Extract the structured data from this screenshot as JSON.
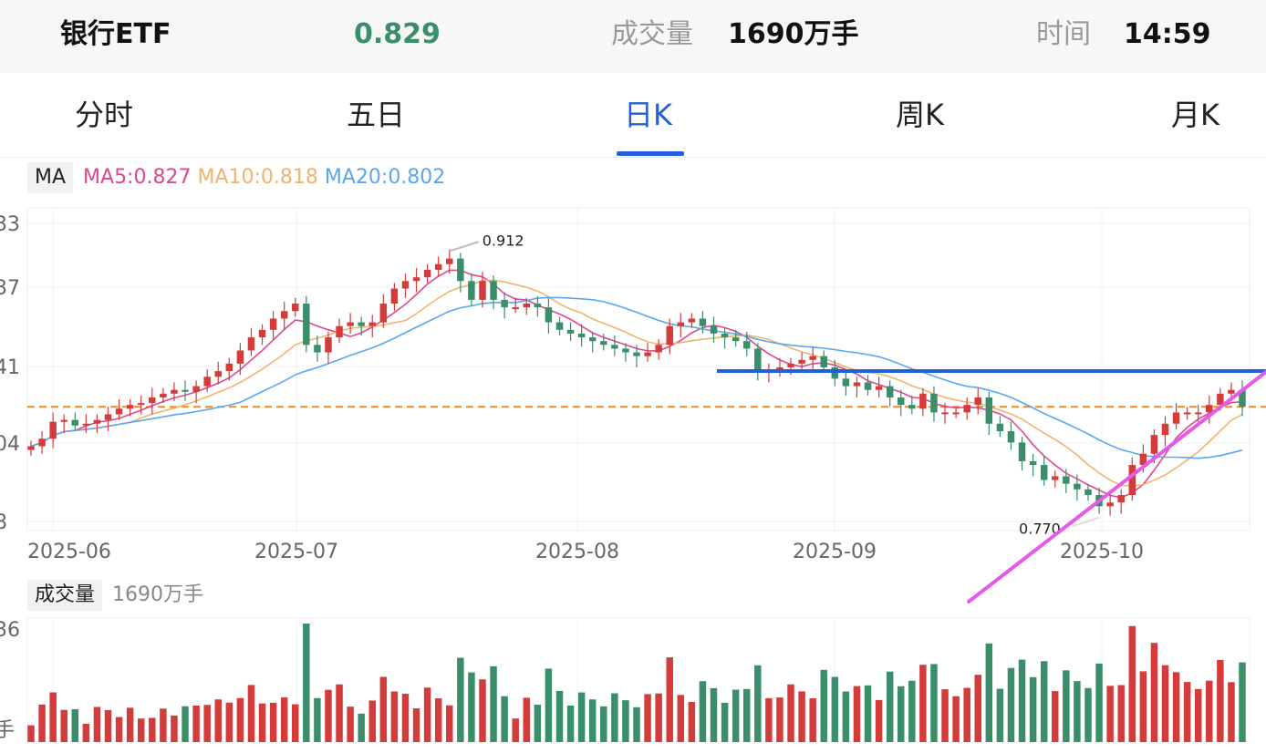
{
  "header": {
    "name": "银行ETF",
    "price": "0.829",
    "volume_label": "成交量",
    "volume_value": "1690万手",
    "time_label": "时间",
    "time_value": "14:59"
  },
  "tabs": [
    {
      "label": "分时",
      "active": false
    },
    {
      "label": "五日",
      "active": false
    },
    {
      "label": "日K",
      "active": true
    },
    {
      "label": "周K",
      "active": false
    },
    {
      "label": "月K",
      "active": false
    }
  ],
  "ma_legend": {
    "tag": "MA",
    "ma5": "MA5:0.827",
    "ma10": "MA10:0.818",
    "ma20": "MA20:0.802"
  },
  "volume_legend": {
    "tag": "成交量",
    "value": "1690万手"
  },
  "colors": {
    "up": "#d43c3c",
    "down": "#3a8f6a",
    "ma5": "#e0468f",
    "ma10": "#f0b46a",
    "ma20": "#5aa7ef",
    "accent": "#2160d6",
    "ref_line": "#f08a24",
    "trend": "#e55ae8"
  },
  "chart_data": [
    {
      "type": "candlestick",
      "x_tick_labels": [
        "2025-06",
        "2025-07",
        "2025-08",
        "2025-09",
        "2025-10"
      ],
      "y_tick_labels": [
        "33",
        "37",
        "41",
        "04",
        "8"
      ],
      "ylim": [
        0.765,
        0.935
      ],
      "reference_level": 0.829,
      "max_annotation": {
        "label": "0.912",
        "value": 0.912
      },
      "min_annotation": {
        "label": "0.770",
        "value": 0.77
      },
      "close": [
        0.808,
        0.812,
        0.821,
        0.822,
        0.819,
        0.82,
        0.822,
        0.825,
        0.828,
        0.83,
        0.831,
        0.834,
        0.836,
        0.838,
        0.837,
        0.84,
        0.845,
        0.848,
        0.852,
        0.859,
        0.866,
        0.87,
        0.876,
        0.88,
        0.884,
        0.862,
        0.858,
        0.866,
        0.872,
        0.874,
        0.872,
        0.874,
        0.884,
        0.892,
        0.896,
        0.898,
        0.902,
        0.905,
        0.908,
        0.896,
        0.886,
        0.896,
        0.886,
        0.882,
        0.882,
        0.884,
        0.882,
        0.874,
        0.87,
        0.868,
        0.866,
        0.864,
        0.862,
        0.86,
        0.858,
        0.856,
        0.858,
        0.862,
        0.872,
        0.874,
        0.876,
        0.872,
        0.868,
        0.866,
        0.864,
        0.86,
        0.848,
        0.848,
        0.85,
        0.852,
        0.854,
        0.856,
        0.85,
        0.844,
        0.84,
        0.842,
        0.838,
        0.84,
        0.834,
        0.83,
        0.828,
        0.836,
        0.826,
        0.826,
        0.826,
        0.83,
        0.834,
        0.82,
        0.816,
        0.81,
        0.8,
        0.798,
        0.79,
        0.792,
        0.788,
        0.785,
        0.782,
        0.776,
        0.778,
        0.782,
        0.798,
        0.804,
        0.814,
        0.82,
        0.826,
        0.826,
        0.826,
        0.83,
        0.836,
        0.838,
        0.829
      ],
      "ma5_last": 0.827,
      "ma10_last": 0.818,
      "ma20_last": 0.802,
      "volume_unit": "万手",
      "volume_last": 1690
    }
  ]
}
